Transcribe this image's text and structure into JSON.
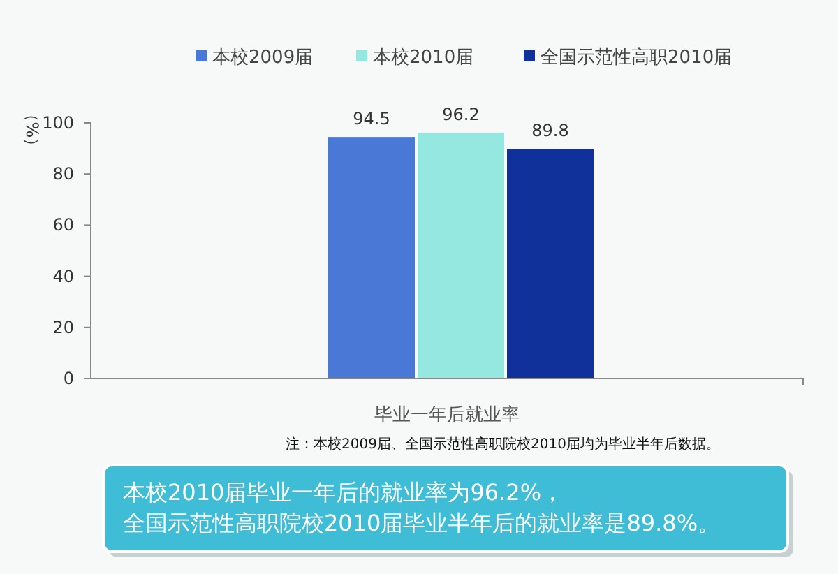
{
  "chart_data": {
    "type": "bar",
    "categories": [
      "毕业一年后就业率"
    ],
    "series": [
      {
        "name": "本校2009届",
        "color": "#4a78d6",
        "values": [
          94.5
        ]
      },
      {
        "name": "本校2010届",
        "color": "#95e8e0",
        "values": [
          96.2
        ]
      },
      {
        "name": "全国示范性高职2010届",
        "color": "#10309a",
        "values": [
          89.8
        ]
      }
    ],
    "ylabel": "（%）",
    "ylim": [
      0,
      100
    ],
    "yticks": [
      0,
      20,
      40,
      60,
      80,
      100
    ],
    "data_labels": true,
    "legend": "top",
    "grid": false,
    "annotations": [
      "注：本校2009届、全国示范性高职院校2010届均为毕业半年后数据。",
      "本校2010届毕业一年后的就业率为96.2%，",
      "全国示范性高职院校2010届毕业半年后的就业率是89.8%。"
    ]
  }
}
